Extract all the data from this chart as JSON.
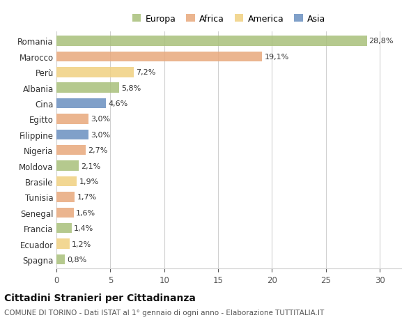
{
  "countries": [
    "Romania",
    "Marocco",
    "Perù",
    "Albania",
    "Cina",
    "Egitto",
    "Filippine",
    "Nigeria",
    "Moldova",
    "Brasile",
    "Tunisia",
    "Senegal",
    "Francia",
    "Ecuador",
    "Spagna"
  ],
  "values": [
    28.8,
    19.1,
    7.2,
    5.8,
    4.6,
    3.0,
    3.0,
    2.7,
    2.1,
    1.9,
    1.7,
    1.6,
    1.4,
    1.2,
    0.8
  ],
  "labels": [
    "28,8%",
    "19,1%",
    "7,2%",
    "5,8%",
    "4,6%",
    "3,0%",
    "3,0%",
    "2,7%",
    "2,1%",
    "1,9%",
    "1,7%",
    "1,6%",
    "1,4%",
    "1,2%",
    "0,8%"
  ],
  "colors": [
    "#a8c07a",
    "#e8a87c",
    "#f0d080",
    "#a8c07a",
    "#6a8fc0",
    "#e8a87c",
    "#6a8fc0",
    "#e8a87c",
    "#a8c07a",
    "#f0d080",
    "#e8a87c",
    "#e8a87c",
    "#a8c07a",
    "#f0d080",
    "#a8c07a"
  ],
  "legend_labels": [
    "Europa",
    "Africa",
    "America",
    "Asia"
  ],
  "legend_colors": [
    "#a8c07a",
    "#e8a87c",
    "#f0d080",
    "#6a8fc0"
  ],
  "title": "Cittadini Stranieri per Cittadinanza",
  "subtitle": "COMUNE DI TORINO - Dati ISTAT al 1° gennaio di ogni anno - Elaborazione TUTTITALIA.IT",
  "xlim": [
    0,
    32
  ],
  "xticks": [
    0,
    5,
    10,
    15,
    20,
    25,
    30
  ],
  "background_color": "#ffffff",
  "grid_color": "#d0d0d0",
  "bar_height": 0.65,
  "bar_alpha": 0.85,
  "label_fontsize": 8.0,
  "ytick_fontsize": 8.5,
  "xtick_fontsize": 8.5,
  "legend_fontsize": 9.0,
  "title_fontsize": 10.0,
  "subtitle_fontsize": 7.5
}
